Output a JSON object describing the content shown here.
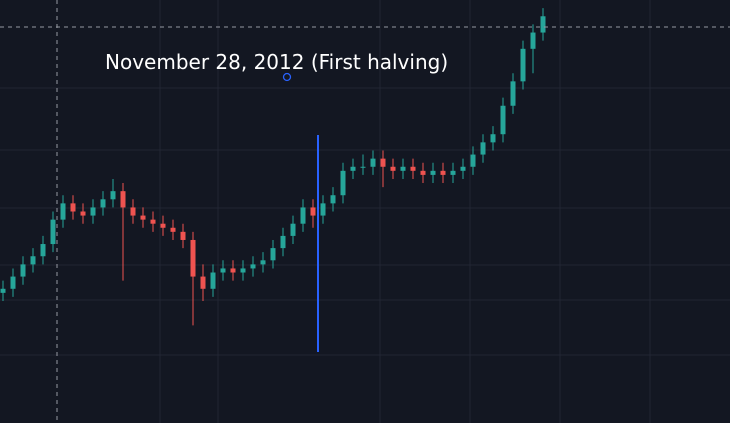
{
  "chart_data": {
    "type": "candlestick",
    "annotation": "November 28, 2012 (First halving)",
    "ylim": [
      0,
      104
    ],
    "up_color": "#26a69a",
    "down_color": "#ef5350",
    "open": [
      32,
      33,
      36,
      39,
      41,
      44,
      50,
      54,
      52,
      51,
      53,
      55,
      57,
      53,
      51,
      50,
      49,
      48,
      47,
      45,
      36,
      33,
      37,
      38,
      37,
      38,
      39,
      40,
      43,
      46,
      49,
      53,
      51,
      54,
      56,
      62,
      63,
      63,
      65,
      63,
      62,
      63,
      62,
      61,
      62,
      61,
      62,
      63,
      66,
      69,
      71,
      78,
      84,
      92,
      96
    ],
    "high": [
      35,
      38,
      41,
      43,
      46,
      52,
      56,
      56,
      54,
      55,
      57,
      60,
      59,
      55,
      53,
      52,
      51,
      50,
      49,
      47,
      39,
      39,
      40,
      40,
      40,
      41,
      42,
      45,
      48,
      51,
      55,
      55,
      56,
      58,
      64,
      65,
      66,
      67,
      67,
      65,
      65,
      65,
      64,
      64,
      64,
      64,
      65,
      68,
      71,
      73,
      80,
      86,
      94,
      98,
      102
    ],
    "low": [
      30,
      31,
      34,
      37,
      39,
      42,
      48,
      50,
      49,
      49,
      51,
      53,
      35,
      49,
      48,
      47,
      46,
      45,
      43,
      24,
      30,
      31,
      35,
      35,
      35,
      36,
      37,
      38,
      41,
      44,
      47,
      48,
      49,
      52,
      54,
      60,
      61,
      61,
      58,
      60,
      60,
      60,
      59,
      59,
      59,
      59,
      60,
      61,
      64,
      67,
      69,
      76,
      82,
      86,
      94
    ],
    "close": [
      33,
      36,
      39,
      41,
      44,
      50,
      54,
      52,
      51,
      53,
      55,
      57,
      53,
      51,
      50,
      49,
      48,
      47,
      45,
      36,
      33,
      37,
      38,
      37,
      38,
      39,
      40,
      43,
      46,
      49,
      53,
      51,
      54,
      56,
      62,
      63,
      63,
      65,
      63,
      62,
      63,
      62,
      61,
      62,
      61,
      62,
      63,
      66,
      69,
      71,
      78,
      84,
      92,
      96,
      100
    ]
  }
}
